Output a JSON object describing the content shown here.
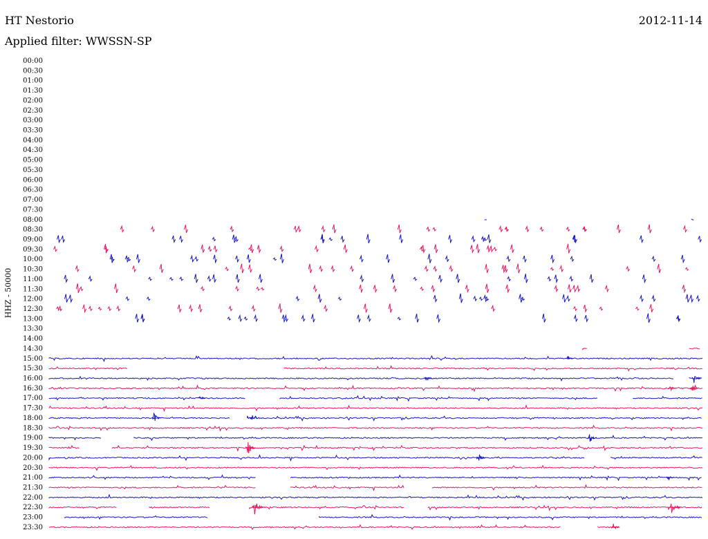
{
  "header": {
    "station": "HT Nestorio",
    "date": "2012-11-14",
    "filter_text": "Applied filter: WWSSN-SP"
  },
  "chart_data": {
    "type": "line",
    "title": "HT Nestorio",
    "ylabel": "HHZ - 50000",
    "colors": {
      "even": "#1414c8",
      "odd": "#f0145a"
    },
    "time_labels": [
      "00:00",
      "00:30",
      "01:00",
      "01:30",
      "02:00",
      "02:30",
      "03:00",
      "03:30",
      "04:00",
      "04:30",
      "05:00",
      "05:30",
      "06:00",
      "06:30",
      "07:00",
      "07:30",
      "08:00",
      "08:30",
      "09:00",
      "09:30",
      "10:00",
      "10:30",
      "11:00",
      "11:30",
      "12:00",
      "12:30",
      "13:00",
      "13:30",
      "14:00",
      "14:30",
      "15:00",
      "15:30",
      "16:00",
      "16:30",
      "17:00",
      "17:30",
      "18:00",
      "18:30",
      "19:00",
      "19:30",
      "20:00",
      "20:30",
      "21:00",
      "21:30",
      "22:00",
      "22:30",
      "23:00",
      "23:30"
    ],
    "x_range_minutes": [
      0,
      30
    ],
    "traces": [
      {
        "row": 16,
        "segments": [
          [
            20.0,
            20.1
          ],
          [
            29.5,
            29.6
          ]
        ],
        "events": []
      },
      {
        "row": 17,
        "segments": [],
        "events": []
      },
      {
        "row": 18,
        "segments": [],
        "events": []
      },
      {
        "row": 19,
        "segments": [],
        "events": []
      },
      {
        "row": 20,
        "segments": [],
        "events": []
      },
      {
        "row": 21,
        "segments": [],
        "events": []
      },
      {
        "row": 22,
        "segments": [],
        "events": []
      },
      {
        "row": 23,
        "segments": [],
        "events": []
      },
      {
        "row": 24,
        "segments": [],
        "events": []
      },
      {
        "row": 25,
        "segments": [],
        "events": []
      },
      {
        "row": 26,
        "segments": [],
        "events": []
      },
      {
        "row": 27,
        "segments": [],
        "events": []
      },
      {
        "row": 28,
        "segments": [],
        "events": []
      },
      {
        "row": 29,
        "segments": [
          [
            24.5,
            24.7
          ],
          [
            29.4,
            29.9
          ]
        ],
        "events": []
      },
      {
        "row": 30,
        "segments": [
          [
            0,
            30
          ]
        ],
        "events": [
          {
            "t": 23.8,
            "amp": 0.25
          }
        ]
      },
      {
        "row": 31,
        "segments": [
          [
            0,
            3.6
          ],
          [
            10.8,
            30
          ]
        ],
        "events": []
      },
      {
        "row": 32,
        "segments": [
          [
            0,
            28.7
          ],
          [
            29.4,
            30
          ]
        ],
        "events": [
          {
            "t": 17.3,
            "amp": 0.35
          },
          {
            "t": 29.6,
            "amp": 0.45
          }
        ]
      },
      {
        "row": 33,
        "segments": [
          [
            0,
            30
          ]
        ],
        "events": [
          {
            "t": 28.5,
            "amp": 0.3
          },
          {
            "t": 29.5,
            "amp": 0.45
          }
        ]
      },
      {
        "row": 34,
        "segments": [
          [
            0,
            9.0
          ],
          [
            10.6,
            25.2
          ],
          [
            26.8,
            30
          ]
        ],
        "events": [
          {
            "t": 6.9,
            "amp": 0.3
          }
        ]
      },
      {
        "row": 35,
        "segments": [
          [
            0,
            30
          ]
        ],
        "events": []
      },
      {
        "row": 36,
        "segments": [
          [
            0,
            8.3
          ],
          [
            9.1,
            30
          ]
        ],
        "events": [
          {
            "t": 4.8,
            "amp": 0.5
          },
          {
            "t": 9.3,
            "amp": 0.4
          }
        ]
      },
      {
        "row": 37,
        "segments": [
          [
            0,
            30
          ]
        ],
        "events": []
      },
      {
        "row": 38,
        "segments": [
          [
            0,
            2.4
          ],
          [
            3.9,
            30
          ]
        ],
        "events": [
          {
            "t": 24.8,
            "amp": 0.5
          }
        ]
      },
      {
        "row": 39,
        "segments": [
          [
            0,
            1.4
          ],
          [
            2.9,
            30
          ]
        ],
        "events": [
          {
            "t": 9.1,
            "amp": 0.7
          }
        ]
      },
      {
        "row": 40,
        "segments": [
          [
            0,
            24.6
          ],
          [
            25.8,
            30
          ]
        ],
        "events": [
          {
            "t": 19.7,
            "amp": 0.45
          }
        ]
      },
      {
        "row": 41,
        "segments": [
          [
            0,
            30
          ]
        ],
        "events": []
      },
      {
        "row": 42,
        "segments": [
          [
            0,
            9.5
          ],
          [
            11.1,
            30
          ]
        ],
        "events": [
          {
            "t": 28.4,
            "amp": 0.3
          }
        ]
      },
      {
        "row": 43,
        "segments": [
          [
            0,
            9.5
          ],
          [
            11.1,
            16.3
          ],
          [
            17.6,
            30
          ]
        ],
        "events": []
      },
      {
        "row": 44,
        "segments": [
          [
            0,
            30
          ]
        ],
        "events": []
      },
      {
        "row": 45,
        "segments": [
          [
            0,
            3.1
          ],
          [
            4.6,
            7.4
          ],
          [
            9.2,
            16.3
          ],
          [
            17.4,
            30
          ]
        ],
        "events": [
          {
            "t": 9.4,
            "amp": 0.8
          },
          {
            "t": 28.5,
            "amp": 1.0
          }
        ]
      },
      {
        "row": 46,
        "segments": [
          [
            0.7,
            7.3
          ],
          [
            12.4,
            30
          ]
        ],
        "events": []
      },
      {
        "row": 47,
        "segments": [
          [
            0,
            23.5
          ],
          [
            25.2,
            26.2
          ]
        ],
        "events": [
          {
            "t": 25.9,
            "amp": 0.35
          }
        ]
      }
    ]
  }
}
